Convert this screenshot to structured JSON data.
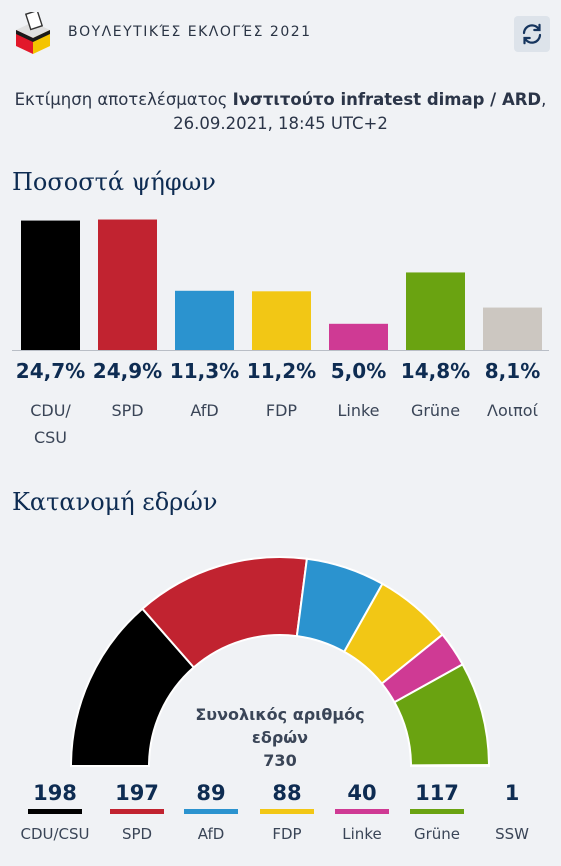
{
  "header": {
    "title": "ΒΟΥΛΕΥΤΙΚΈΣ ΕΚΛΟΓΈΣ 2021"
  },
  "subtitle": {
    "prefix": "Εκτίμηση αποτελέσματος ",
    "source": "Ινστιτούτο infratest dimap / ARD",
    "suffix": ",",
    "datetime": "26.09.2021, 18:45 UTC+2"
  },
  "votes_title": "Ποσοστά ψήφων",
  "seats_title": "Κατανομή εδρών",
  "colors": {
    "CDU/CSU": "#000000",
    "SPD": "#c12330",
    "AfD": "#2b93cf",
    "FDP": "#f2c715",
    "Linke": "#cf3a94",
    "Grüne": "#6aa311",
    "Λοιποί": "#ccc7c1",
    "SSW": "#1d3a6a"
  },
  "chart_data": [
    {
      "type": "bar",
      "categories": [
        "CDU/\nCSU",
        "SPD",
        "AfD",
        "FDP",
        "Linke",
        "Grüne",
        "Λοιποί"
      ],
      "values": [
        24.7,
        24.9,
        11.3,
        11.2,
        5.0,
        14.8,
        8.1
      ],
      "value_labels": [
        "24,7%",
        "24,9%",
        "11,3%",
        "11,2%",
        "5,0%",
        "14,8%",
        "8,1%"
      ],
      "colors": [
        "#000000",
        "#c12330",
        "#2b93cf",
        "#f2c715",
        "#cf3a94",
        "#6aa311",
        "#ccc7c1"
      ]
    },
    {
      "type": "pie",
      "shape": "semicircle",
      "categories": [
        "CDU/CSU",
        "SPD",
        "AfD",
        "FDP",
        "Linke",
        "Grüne",
        "SSW"
      ],
      "values": [
        198,
        197,
        89,
        88,
        40,
        117,
        1
      ],
      "colors": [
        "#000000",
        "#c12330",
        "#2b93cf",
        "#f2c715",
        "#cf3a94",
        "#6aa311",
        "#1d3a6a"
      ],
      "center_label": "Συνολικός αριθμός εδρών",
      "total": 730
    }
  ]
}
